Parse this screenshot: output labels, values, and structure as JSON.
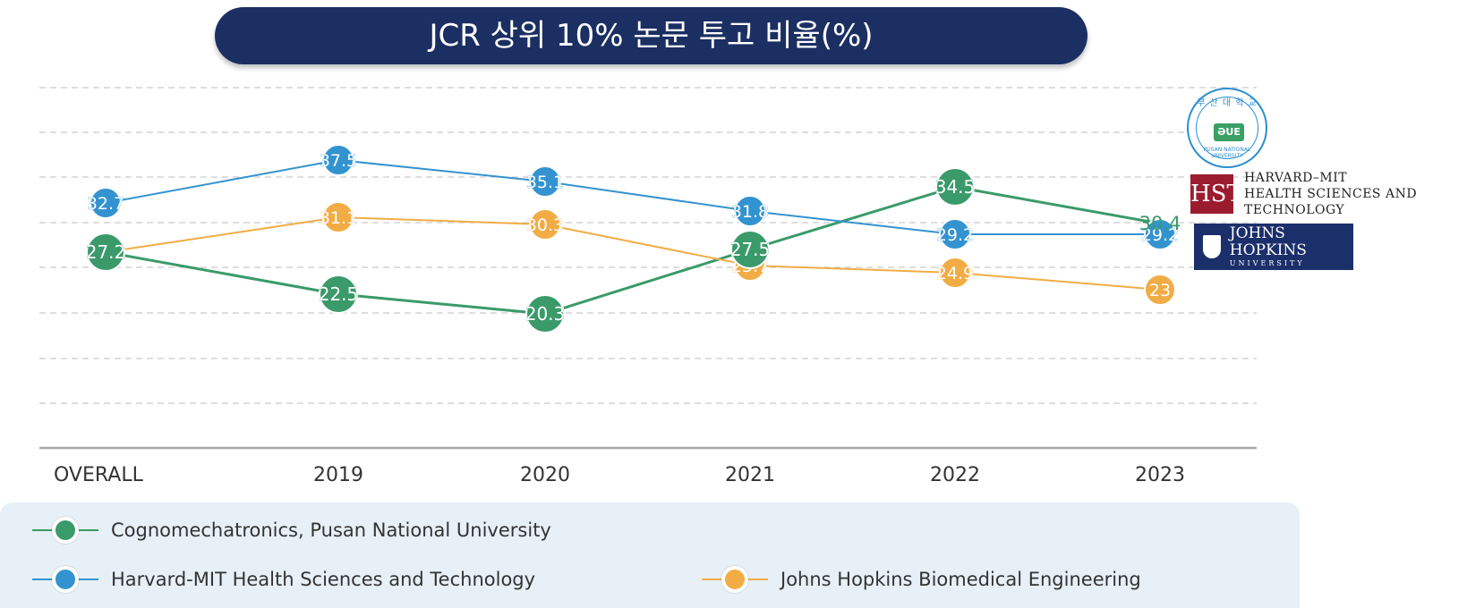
{
  "chart_data": {
    "type": "line",
    "title": "JCR 상위 10% 논문 투고 비율(%)",
    "categories": [
      "OVERALL",
      "2019",
      "2020",
      "2021",
      "2022",
      "2023"
    ],
    "ylim": [
      0,
      40
    ],
    "grid": true,
    "series": [
      {
        "name": "Cognomechatronics, Pusan National University",
        "color": "#3a9a6a",
        "values": [
          27.2,
          22.5,
          20.3,
          27.5,
          34.5,
          30.4
        ],
        "labels": [
          "27.2",
          "22.5",
          "20.3",
          "27.5",
          "34.5",
          "30.4"
        ]
      },
      {
        "name": "Harvard-MIT Health Sciences and Technology",
        "color": "#3393d0",
        "values": [
          32.7,
          37.5,
          35.1,
          31.8,
          29.2,
          29.2
        ],
        "labels": [
          "32.7",
          "37.5",
          "35.1",
          "31.8",
          "29.2",
          "29.2"
        ]
      },
      {
        "name": "Johns Hopkins Biomedical Engineering",
        "color": "#f2ac45",
        "values": [
          27.2,
          31.1,
          30.3,
          25.7,
          24.9,
          23
        ],
        "labels": [
          "27.2",
          "31.1",
          "30.3",
          "25.7",
          "24.9",
          "23"
        ]
      }
    ],
    "legend": "bottom"
  },
  "logos": {
    "pnu": {
      "ring_text": "부 산 대 학 교",
      "mark": "ƏUE",
      "bottom_text": "PUSAN NATIONAL UNIVERSITY"
    },
    "hst": {
      "mark": "HST",
      "line1": "HARVARD–MIT",
      "line2": "HEALTH SCIENCES AND TECHNOLOGY"
    },
    "jhu": {
      "line1": "JOHNS HOPKINS",
      "line2": "UNIVERSITY"
    }
  }
}
